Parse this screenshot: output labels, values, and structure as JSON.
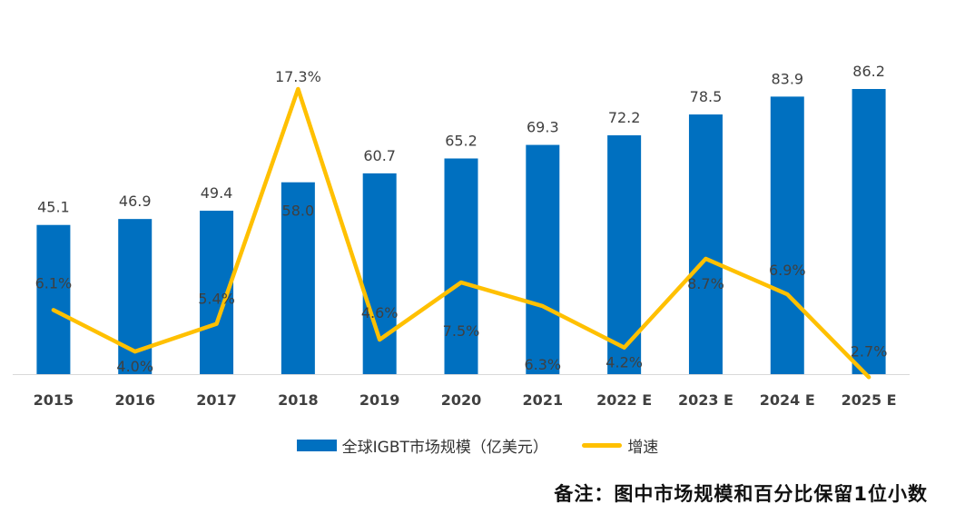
{
  "chart_data": {
    "type": "bar",
    "categories": [
      "2015",
      "2016",
      "2017",
      "2018",
      "2019",
      "2020",
      "2021",
      "2022E",
      "2023E",
      "2024E",
      "2025E"
    ],
    "tick_labels": [
      "2015",
      "2016",
      "2017",
      "2018",
      "2019",
      "2020",
      "2021",
      "2022 E",
      "2023 E",
      "2024 E",
      "2025 E"
    ],
    "series": [
      {
        "name": "全球IGBT市场规模（亿美元）",
        "type": "bar",
        "axis": "left",
        "values": [
          45.1,
          46.9,
          49.4,
          58.0,
          60.7,
          65.2,
          69.3,
          72.2,
          78.5,
          83.9,
          86.2
        ],
        "labels": [
          "45.1",
          "46.9",
          "49.4",
          "58.0",
          "60.7",
          "65.2",
          "69.3",
          "72.2",
          "78.5",
          "83.9",
          "86.2"
        ],
        "color": "#0070C0"
      },
      {
        "name": "增速",
        "type": "line",
        "axis": "right",
        "values": [
          6.1,
          4.0,
          5.4,
          17.3,
          4.6,
          7.5,
          6.3,
          4.2,
          8.7,
          6.9,
          2.7
        ],
        "labels": [
          "6.1%",
          "4.0%",
          "5.4%",
          "17.3%",
          "4.6%",
          "7.5%",
          "6.3%",
          "4.2%",
          "8.7%",
          "6.9%",
          "2.7%"
        ],
        "color": "#FFC000"
      }
    ],
    "ylim_left": [
      0,
      86.2
    ],
    "ylim_right": [
      0,
      17.3
    ],
    "grid": false,
    "legend_position": "bottom"
  },
  "legend": {
    "bar_label": "全球IGBT市场规模（亿美元）",
    "line_label": "增速"
  },
  "note": "备注：图中市场规模和百分比保留1位小数"
}
